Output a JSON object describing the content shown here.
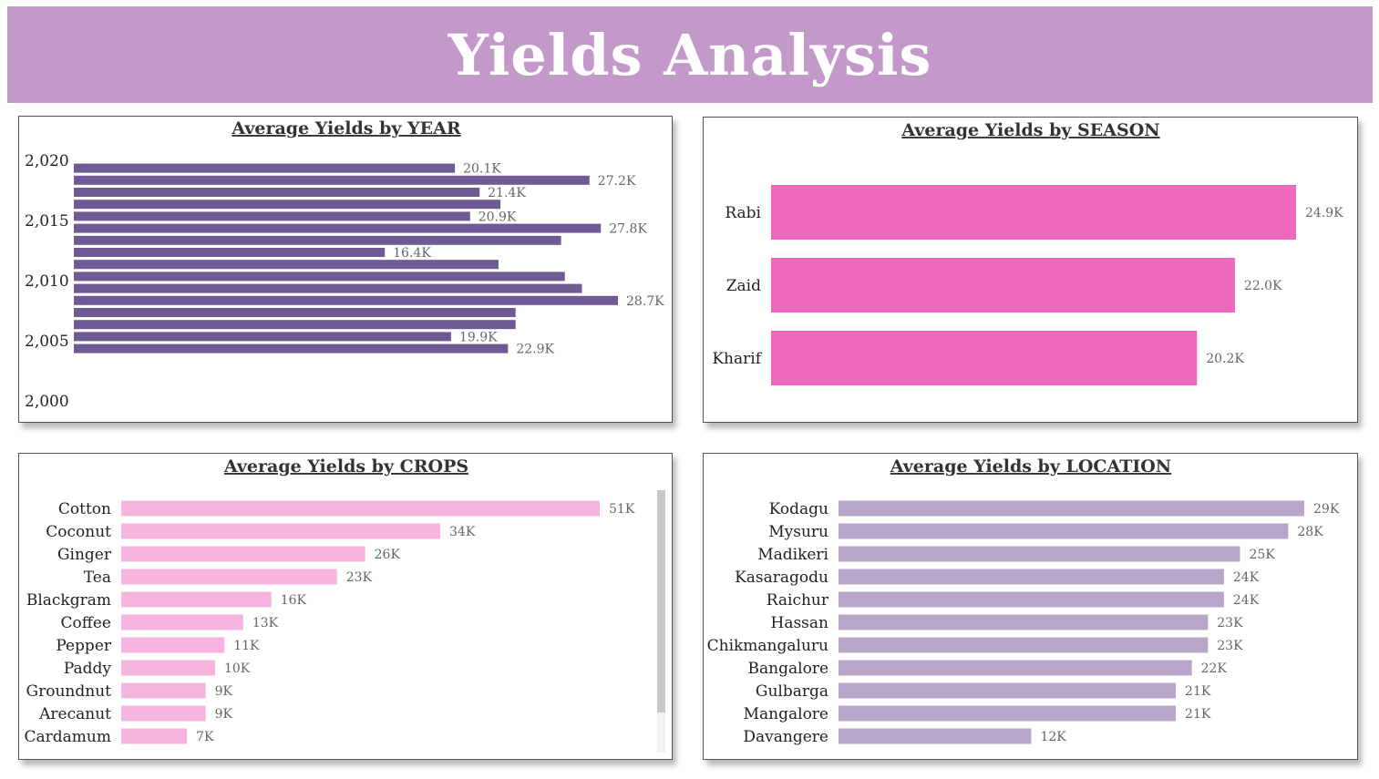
{
  "header": {
    "title": "Yields Analysis",
    "bg": "#c399c9"
  },
  "chart_data": [
    {
      "id": "year",
      "type": "bar",
      "orientation": "horizontal",
      "title": "Average Yields by YEAR",
      "color": "#6e5a94",
      "axis_ticks": [
        "2,020",
        "2,015",
        "2,010",
        "2,005",
        "2,000"
      ],
      "ylim": [
        2000,
        2020.5
      ],
      "bars": [
        {
          "x": 2019,
          "value": 20100,
          "label": "20.1K"
        },
        {
          "x": 2018,
          "value": 27200,
          "label": "27.2K"
        },
        {
          "x": 2017,
          "value": 21400,
          "label": "21.4K"
        },
        {
          "x": 2016,
          "value": 22500,
          "label": ""
        },
        {
          "x": 2015,
          "value": 20900,
          "label": "20.9K"
        },
        {
          "x": 2014,
          "value": 27800,
          "label": "27.8K"
        },
        {
          "x": 2013,
          "value": 25700,
          "label": ""
        },
        {
          "x": 2012,
          "value": 16400,
          "label": "16.4K"
        },
        {
          "x": 2011,
          "value": 22400,
          "label": ""
        },
        {
          "x": 2010,
          "value": 25900,
          "label": ""
        },
        {
          "x": 2009,
          "value": 26800,
          "label": ""
        },
        {
          "x": 2008,
          "value": 28700,
          "label": "28.7K"
        },
        {
          "x": 2007,
          "value": 23300,
          "label": ""
        },
        {
          "x": 2006,
          "value": 23300,
          "label": ""
        },
        {
          "x": 2005,
          "value": 19900,
          "label": "19.9K"
        },
        {
          "x": 2004,
          "value": 22900,
          "label": "22.9K"
        }
      ]
    },
    {
      "id": "season",
      "type": "bar",
      "orientation": "horizontal",
      "title": "Average Yields by SEASON",
      "color": "#ed69bb",
      "categories": [
        "Rabi",
        "Zaid",
        "Kharif"
      ],
      "values": [
        24900,
        22000,
        20200
      ],
      "labels": [
        "24.9K",
        "22.0K",
        "20.2K"
      ]
    },
    {
      "id": "crops",
      "type": "bar",
      "orientation": "horizontal",
      "title": "Average Yields by CROPS",
      "color": "#f5b5de",
      "categories": [
        "Cotton",
        "Coconut",
        "Ginger",
        "Tea",
        "Blackgram",
        "Coffee",
        "Pepper",
        "Paddy",
        "Groundnut",
        "Arecanut",
        "Cardamum"
      ],
      "values": [
        51000,
        34000,
        26000,
        23000,
        16000,
        13000,
        11000,
        10000,
        9000,
        9000,
        7000
      ],
      "labels": [
        "51K",
        "34K",
        "26K",
        "23K",
        "16K",
        "13K",
        "11K",
        "10K",
        "9K",
        "9K",
        "7K"
      ]
    },
    {
      "id": "location",
      "type": "bar",
      "orientation": "horizontal",
      "title": "Average Yields by LOCATION",
      "color": "#b7a6c9",
      "categories": [
        "Kodagu",
        "Mysuru",
        "Madikeri",
        "Kasaragodu",
        "Raichur",
        "Hassan",
        "Chikmangaluru",
        "Bangalore",
        "Gulbarga",
        "Mangalore",
        "Davangere"
      ],
      "values": [
        29000,
        28000,
        25000,
        24000,
        24000,
        23000,
        23000,
        22000,
        21000,
        21000,
        12000
      ],
      "labels": [
        "29K",
        "28K",
        "25K",
        "24K",
        "24K",
        "23K",
        "23K",
        "22K",
        "21K",
        "21K",
        "12K"
      ]
    }
  ]
}
